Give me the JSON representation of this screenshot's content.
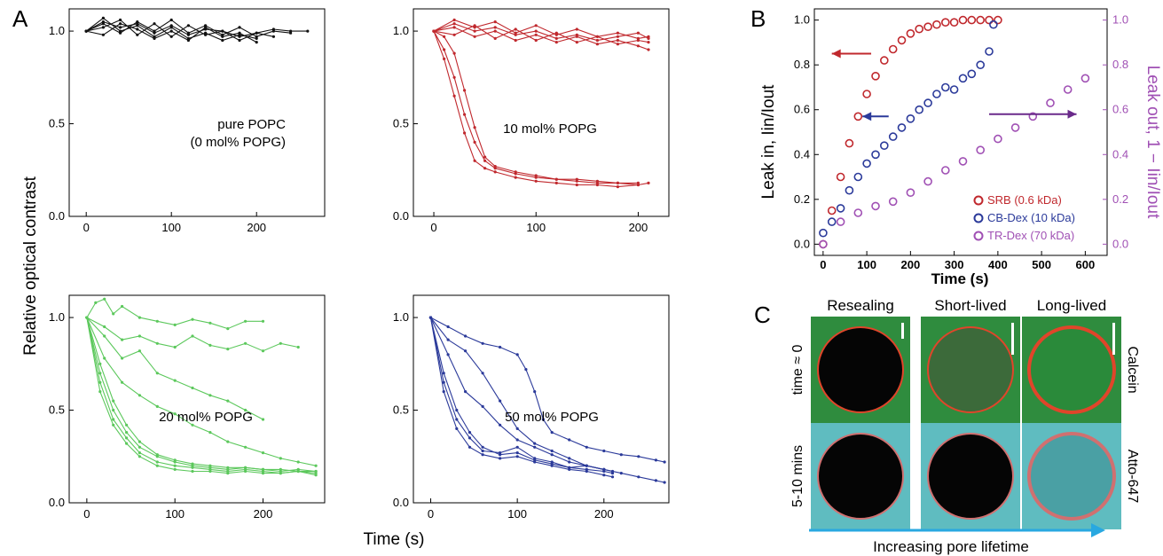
{
  "panels": {
    "a": "A",
    "b": "B",
    "c": "C"
  },
  "panel_a": {
    "ylabel": "Relative optical contrast",
    "xlabel": "Time (s)",
    "y_ticks": [
      "0.0",
      "0.5",
      "1.0"
    ],
    "x_ticks": [
      "0",
      "100",
      "200"
    ]
  },
  "panel_b": {
    "xlabel": "Time (s)",
    "ylabel_left": "Leak in, Iin/Iout",
    "ylabel_right": "Leak out, 1 − Iin/Iout",
    "x_ticks": [
      "0",
      "100",
      "200",
      "300",
      "400",
      "500",
      "600"
    ],
    "y_ticks": [
      "0.0",
      "0.2",
      "0.4",
      "0.6",
      "0.8",
      "1.0"
    ]
  },
  "panel_c": {
    "columns": [
      "Resealing",
      "Short-lived",
      "Long-lived"
    ],
    "rows_left": [
      "time ≈ 0",
      "5-10 mins"
    ],
    "rows_right": [
      "Calcein",
      "Atto-647"
    ],
    "arrow_label": "Increasing pore lifetime"
  },
  "colors": {
    "black": "#111111",
    "red": "#c0282d",
    "green": "#5cc85c",
    "blue": "#2b3a9a",
    "purple": "#a050b4",
    "arrow": "#29a8e0"
  },
  "chart_data": [
    {
      "type": "line",
      "label": "pure POPC\n(0 mol% POPG)",
      "color": "#111111",
      "xlim": [
        -20,
        280
      ],
      "ylim": [
        0,
        1.12
      ],
      "series": [
        {
          "x": [
            0,
            20,
            40,
            60,
            80,
            100,
            120,
            140,
            160,
            180,
            200,
            220,
            240,
            260
          ],
          "y": [
            1.0,
            1.05,
            1.02,
            1.04,
            0.99,
            1.03,
            0.98,
            1.01,
            1.0,
            0.97,
            0.99,
            1.01,
            1.0,
            1.0
          ]
        },
        {
          "x": [
            0,
            20,
            40,
            60,
            80,
            100,
            120,
            140,
            160,
            180,
            200
          ],
          "y": [
            1.0,
            1.07,
            1.0,
            1.03,
            0.97,
            1.02,
            0.96,
            0.99,
            0.95,
            0.98,
            0.96
          ]
        },
        {
          "x": [
            0,
            20,
            40,
            60,
            80,
            100,
            120,
            140,
            160,
            180,
            200,
            220
          ],
          "y": [
            1.0,
            1.02,
            1.06,
            0.98,
            1.04,
            0.97,
            1.03,
            0.98,
            1.0,
            0.95,
            0.99,
            0.97
          ]
        },
        {
          "x": [
            0,
            20,
            40,
            60,
            80,
            100,
            120,
            140,
            160,
            180,
            200
          ],
          "y": [
            1.0,
            0.98,
            1.04,
            1.01,
            0.96,
            1.0,
            0.95,
            1.02,
            0.97,
            0.99,
            0.94
          ]
        },
        {
          "x": [
            0,
            20,
            40,
            60,
            80,
            100,
            120,
            140,
            160,
            180,
            200,
            220,
            240
          ],
          "y": [
            1.0,
            1.04,
            0.99,
            1.05,
            1.0,
            1.06,
            0.99,
            1.03,
            0.98,
            1.02,
            0.97,
            1.0,
            0.99
          ]
        }
      ]
    },
    {
      "type": "line",
      "label": "10 mol% POPG",
      "color": "#c0282d",
      "xlim": [
        -20,
        230
      ],
      "ylim": [
        0,
        1.12
      ],
      "series": [
        {
          "x": [
            0,
            20,
            40,
            60,
            80,
            100,
            120,
            140,
            160,
            180,
            200,
            210
          ],
          "y": [
            1.0,
            1.06,
            1.02,
            1.05,
            0.99,
            1.03,
            0.98,
            1.01,
            0.97,
            0.99,
            0.96,
            0.97
          ]
        },
        {
          "x": [
            0,
            20,
            40,
            60,
            80,
            100,
            120,
            140,
            160,
            180,
            200,
            210
          ],
          "y": [
            1.0,
            1.02,
            0.97,
            1.0,
            0.95,
            0.98,
            0.94,
            0.97,
            0.93,
            0.95,
            0.92,
            0.9
          ]
        },
        {
          "x": [
            0,
            20,
            40,
            60,
            80,
            100,
            120,
            140,
            160,
            180,
            200,
            210
          ],
          "y": [
            1.0,
            0.98,
            1.03,
            0.96,
            1.01,
            0.95,
            0.99,
            0.94,
            0.97,
            0.93,
            0.95,
            0.94
          ]
        },
        {
          "x": [
            0,
            20,
            40,
            60,
            80,
            100,
            120,
            140,
            160,
            180,
            200,
            210
          ],
          "y": [
            1.0,
            1.04,
            1.0,
            1.02,
            0.98,
            1.0,
            0.96,
            0.98,
            0.95,
            0.97,
            0.99,
            0.96
          ]
        },
        {
          "x": [
            0,
            10,
            20,
            30,
            40,
            50,
            60,
            80,
            100,
            120,
            140,
            160,
            180,
            200,
            210
          ],
          "y": [
            1.0,
            0.85,
            0.65,
            0.45,
            0.3,
            0.26,
            0.24,
            0.21,
            0.19,
            0.18,
            0.17,
            0.17,
            0.16,
            0.17,
            0.18
          ]
        },
        {
          "x": [
            0,
            10,
            20,
            30,
            40,
            50,
            60,
            80,
            100,
            120,
            140,
            160,
            180,
            200
          ],
          "y": [
            1.0,
            0.9,
            0.75,
            0.55,
            0.4,
            0.3,
            0.26,
            0.23,
            0.21,
            0.2,
            0.19,
            0.18,
            0.18,
            0.17
          ]
        },
        {
          "x": [
            0,
            10,
            20,
            30,
            40,
            50,
            60,
            80,
            100,
            120,
            140,
            160,
            180,
            200
          ],
          "y": [
            1.0,
            0.97,
            0.88,
            0.68,
            0.48,
            0.32,
            0.27,
            0.24,
            0.22,
            0.2,
            0.2,
            0.19,
            0.18,
            0.18
          ]
        }
      ]
    },
    {
      "type": "line",
      "label": "20 mol% POPG",
      "color": "#5cc85c",
      "xlim": [
        -20,
        270
      ],
      "ylim": [
        0,
        1.12
      ],
      "series": [
        {
          "x": [
            0,
            10,
            20,
            30,
            40,
            60,
            80,
            100,
            120,
            140,
            160,
            180,
            200
          ],
          "y": [
            1.0,
            1.08,
            1.1,
            1.02,
            1.06,
            1.0,
            0.98,
            0.96,
            0.99,
            0.97,
            0.94,
            0.98,
            0.98
          ]
        },
        {
          "x": [
            0,
            20,
            40,
            60,
            80,
            100,
            120,
            140,
            160,
            180,
            200,
            220,
            240
          ],
          "y": [
            1.0,
            0.95,
            0.88,
            0.9,
            0.86,
            0.84,
            0.9,
            0.85,
            0.83,
            0.86,
            0.82,
            0.86,
            0.84
          ]
        },
        {
          "x": [
            0,
            20,
            40,
            60,
            80,
            100,
            120,
            140,
            160,
            180,
            200
          ],
          "y": [
            1.0,
            0.9,
            0.78,
            0.82,
            0.7,
            0.66,
            0.62,
            0.58,
            0.55,
            0.5,
            0.45
          ]
        },
        {
          "x": [
            0,
            20,
            40,
            60,
            80,
            100,
            120,
            140,
            160,
            180,
            200,
            220,
            240,
            260
          ],
          "y": [
            1.0,
            0.78,
            0.65,
            0.58,
            0.52,
            0.48,
            0.42,
            0.38,
            0.33,
            0.3,
            0.27,
            0.24,
            0.22,
            0.2
          ]
        },
        {
          "x": [
            0,
            15,
            30,
            45,
            60,
            80,
            100,
            120,
            140,
            160,
            180,
            200,
            220,
            240,
            260
          ],
          "y": [
            1.0,
            0.7,
            0.5,
            0.38,
            0.3,
            0.25,
            0.22,
            0.2,
            0.19,
            0.18,
            0.19,
            0.18,
            0.17,
            0.18,
            0.17
          ]
        },
        {
          "x": [
            0,
            15,
            30,
            45,
            60,
            80,
            100,
            120,
            140,
            160,
            180,
            200,
            220,
            240,
            260
          ],
          "y": [
            1.0,
            0.65,
            0.45,
            0.35,
            0.27,
            0.22,
            0.2,
            0.19,
            0.18,
            0.17,
            0.18,
            0.17,
            0.16,
            0.17,
            0.16
          ]
        },
        {
          "x": [
            0,
            15,
            30,
            45,
            60,
            80,
            100,
            120,
            140,
            160,
            180,
            200,
            220,
            240,
            260
          ],
          "y": [
            1.0,
            0.75,
            0.55,
            0.42,
            0.33,
            0.26,
            0.23,
            0.21,
            0.2,
            0.19,
            0.19,
            0.18,
            0.18,
            0.17,
            0.17
          ]
        },
        {
          "x": [
            0,
            15,
            30,
            45,
            60,
            80,
            100,
            120,
            140,
            160,
            180,
            200,
            220,
            240,
            260
          ],
          "y": [
            1.0,
            0.6,
            0.42,
            0.32,
            0.25,
            0.2,
            0.18,
            0.17,
            0.17,
            0.16,
            0.17,
            0.16,
            0.16,
            0.17,
            0.15
          ]
        }
      ]
    },
    {
      "type": "line",
      "label": "50 mol% POPG",
      "color": "#2b3a9a",
      "xlim": [
        -20,
        275
      ],
      "ylim": [
        0,
        1.12
      ],
      "series": [
        {
          "x": [
            0,
            20,
            40,
            60,
            80,
            100,
            110,
            120,
            130,
            140,
            160,
            180,
            200,
            220,
            240,
            260,
            270
          ],
          "y": [
            1.0,
            0.95,
            0.9,
            0.86,
            0.84,
            0.8,
            0.72,
            0.6,
            0.45,
            0.38,
            0.34,
            0.3,
            0.28,
            0.26,
            0.25,
            0.23,
            0.22
          ]
        },
        {
          "x": [
            0,
            20,
            40,
            60,
            80,
            100,
            120,
            140,
            160,
            180,
            200,
            220,
            240,
            260,
            270
          ],
          "y": [
            1.0,
            0.88,
            0.82,
            0.7,
            0.55,
            0.4,
            0.32,
            0.28,
            0.24,
            0.2,
            0.18,
            0.16,
            0.14,
            0.12,
            0.11
          ]
        },
        {
          "x": [
            0,
            15,
            30,
            45,
            60,
            80,
            100,
            120,
            140,
            160,
            180,
            200,
            210
          ],
          "y": [
            1.0,
            0.65,
            0.45,
            0.35,
            0.28,
            0.27,
            0.3,
            0.24,
            0.22,
            0.19,
            0.18,
            0.17,
            0.16
          ]
        },
        {
          "x": [
            0,
            15,
            30,
            45,
            60,
            80,
            100,
            120,
            140,
            160,
            180,
            200,
            210
          ],
          "y": [
            1.0,
            0.6,
            0.4,
            0.3,
            0.26,
            0.24,
            0.25,
            0.22,
            0.2,
            0.18,
            0.17,
            0.15,
            0.14
          ]
        },
        {
          "x": [
            0,
            15,
            30,
            45,
            60,
            80,
            100,
            120,
            140,
            160,
            180,
            200
          ],
          "y": [
            1.0,
            0.7,
            0.5,
            0.38,
            0.3,
            0.26,
            0.27,
            0.23,
            0.21,
            0.19,
            0.2,
            0.18
          ]
        },
        {
          "x": [
            0,
            20,
            40,
            60,
            80,
            100,
            120,
            140,
            160,
            180,
            200,
            210
          ],
          "y": [
            1.0,
            0.8,
            0.6,
            0.52,
            0.42,
            0.34,
            0.3,
            0.26,
            0.22,
            0.2,
            0.18,
            0.17
          ]
        }
      ]
    },
    {
      "type": "scatter",
      "xlabel": "Time (s)",
      "xlim": [
        -20,
        650
      ],
      "ylim": [
        -0.05,
        1.05
      ],
      "legend_position": "bottom-right",
      "series": [
        {
          "name": "SRB (0.6 kDa)",
          "color": "#c0282d",
          "axis": "left",
          "x": [
            0,
            20,
            40,
            60,
            80,
            100,
            120,
            140,
            160,
            180,
            200,
            220,
            240,
            260,
            280,
            300,
            320,
            340,
            360,
            380,
            400
          ],
          "y": [
            0.0,
            0.15,
            0.3,
            0.45,
            0.57,
            0.67,
            0.75,
            0.82,
            0.87,
            0.91,
            0.94,
            0.96,
            0.97,
            0.98,
            0.99,
            0.99,
            1.0,
            1.0,
            1.0,
            1.0,
            1.0
          ]
        },
        {
          "name": "CB-Dex (10 kDa)",
          "color": "#2b3a9a",
          "axis": "left",
          "x": [
            0,
            20,
            40,
            60,
            80,
            100,
            120,
            140,
            160,
            180,
            200,
            220,
            240,
            260,
            280,
            300,
            320,
            340,
            360,
            380,
            390
          ],
          "y": [
            0.05,
            0.1,
            0.16,
            0.24,
            0.3,
            0.36,
            0.4,
            0.44,
            0.48,
            0.52,
            0.56,
            0.6,
            0.63,
            0.67,
            0.7,
            0.69,
            0.74,
            0.76,
            0.8,
            0.86,
            0.98
          ]
        },
        {
          "name": "TR-Dex (70 kDa)",
          "color": "#a050b4",
          "axis": "right",
          "x": [
            0,
            40,
            80,
            120,
            160,
            200,
            240,
            280,
            320,
            360,
            400,
            440,
            480,
            520,
            560,
            600
          ],
          "y": [
            0.0,
            0.1,
            0.14,
            0.17,
            0.19,
            0.23,
            0.28,
            0.33,
            0.37,
            0.42,
            0.47,
            0.52,
            0.57,
            0.63,
            0.69,
            0.74
          ]
        }
      ]
    }
  ]
}
